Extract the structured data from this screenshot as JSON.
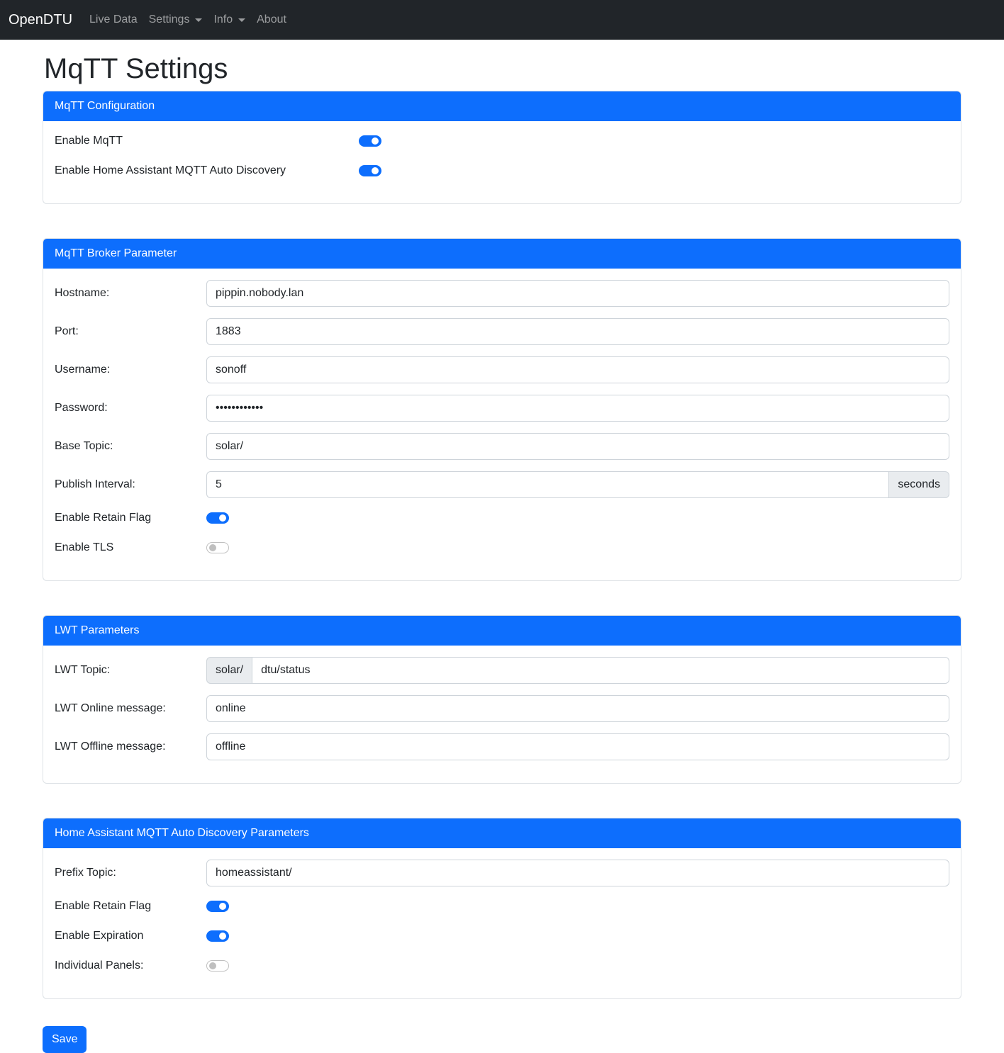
{
  "nav": {
    "brand": "OpenDTU",
    "items": [
      "Live Data",
      "Settings",
      "Info",
      "About"
    ]
  },
  "page_title": "MqTT Settings",
  "config": {
    "title": "MqTT Configuration",
    "enable_mqtt": {
      "label": "Enable MqTT",
      "on": true
    },
    "enable_hass": {
      "label": "Enable Home Assistant MQTT Auto Discovery",
      "on": true
    }
  },
  "broker": {
    "title": "MqTT Broker Parameter",
    "hostname": {
      "label": "Hostname:",
      "value": "pippin.nobody.lan"
    },
    "port": {
      "label": "Port:",
      "value": "1883"
    },
    "username": {
      "label": "Username:",
      "value": "sonoff"
    },
    "password": {
      "label": "Password:",
      "value": "••••••••••••"
    },
    "base_topic": {
      "label": "Base Topic:",
      "value": "solar/"
    },
    "publish_interval": {
      "label": "Publish Interval:",
      "value": "5",
      "unit": "seconds"
    },
    "retain": {
      "label": "Enable Retain Flag",
      "on": true
    },
    "tls": {
      "label": "Enable TLS",
      "on": false
    }
  },
  "lwt": {
    "title": "LWT Parameters",
    "topic": {
      "label": "LWT Topic:",
      "prefix": "solar/",
      "value": "dtu/status"
    },
    "online": {
      "label": "LWT Online message:",
      "value": "online"
    },
    "offline": {
      "label": "LWT Offline message:",
      "value": "offline"
    }
  },
  "hass": {
    "title": "Home Assistant MQTT Auto Discovery Parameters",
    "prefix": {
      "label": "Prefix Topic:",
      "value": "homeassistant/"
    },
    "retain": {
      "label": "Enable Retain Flag",
      "on": true
    },
    "expiration": {
      "label": "Enable Expiration",
      "on": true
    },
    "individual": {
      "label": "Individual Panels:",
      "on": false
    }
  },
  "save_label": "Save",
  "colors": {
    "primary": "#0d6efd",
    "navbar": "#212529"
  }
}
